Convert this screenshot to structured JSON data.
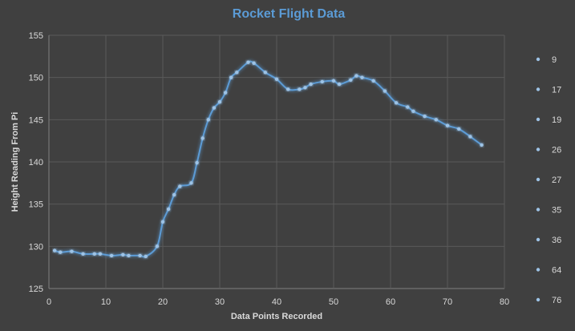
{
  "chart_data": {
    "type": "line",
    "title": "Rocket Flight Data",
    "xlabel": "Data Points Recorded",
    "ylabel": "Height Reading From Pi",
    "xlim": [
      0,
      80
    ],
    "ylim": [
      125,
      155
    ],
    "x_ticks": [
      0,
      10,
      20,
      30,
      40,
      50,
      60,
      70,
      80
    ],
    "y_ticks": [
      125,
      130,
      135,
      140,
      145,
      150,
      155
    ],
    "grid": true,
    "legend_position": "right",
    "legend_entries": [
      "9",
      "17",
      "19",
      "26",
      "27",
      "35",
      "36",
      "64",
      "76"
    ],
    "series_color": "#5b9bd5",
    "series": [
      {
        "x": [
          1,
          2,
          4,
          6,
          8,
          9,
          11,
          13,
          14,
          16,
          17,
          19,
          20,
          21,
          22,
          23,
          25,
          26,
          27,
          28,
          29,
          30,
          31,
          32,
          33,
          35,
          36,
          38,
          40,
          42,
          44,
          45,
          46,
          48,
          50,
          51,
          53,
          54,
          55,
          57,
          59,
          61,
          63,
          64,
          66,
          68,
          70,
          72,
          74,
          76
        ],
        "y": [
          129.5,
          129.3,
          129.4,
          129.1,
          129.1,
          129.1,
          128.9,
          129.0,
          128.9,
          128.9,
          128.8,
          130.0,
          132.9,
          134.4,
          136.1,
          137.1,
          137.5,
          139.9,
          142.8,
          145.0,
          146.4,
          147.1,
          148.2,
          150.0,
          150.6,
          151.8,
          151.7,
          150.6,
          149.8,
          148.6,
          148.6,
          148.8,
          149.2,
          149.5,
          149.6,
          149.2,
          149.7,
          150.2,
          150.0,
          149.6,
          148.4,
          147.0,
          146.5,
          146.0,
          145.4,
          145.0,
          144.3,
          143.9,
          143.0,
          142.0
        ]
      }
    ]
  }
}
